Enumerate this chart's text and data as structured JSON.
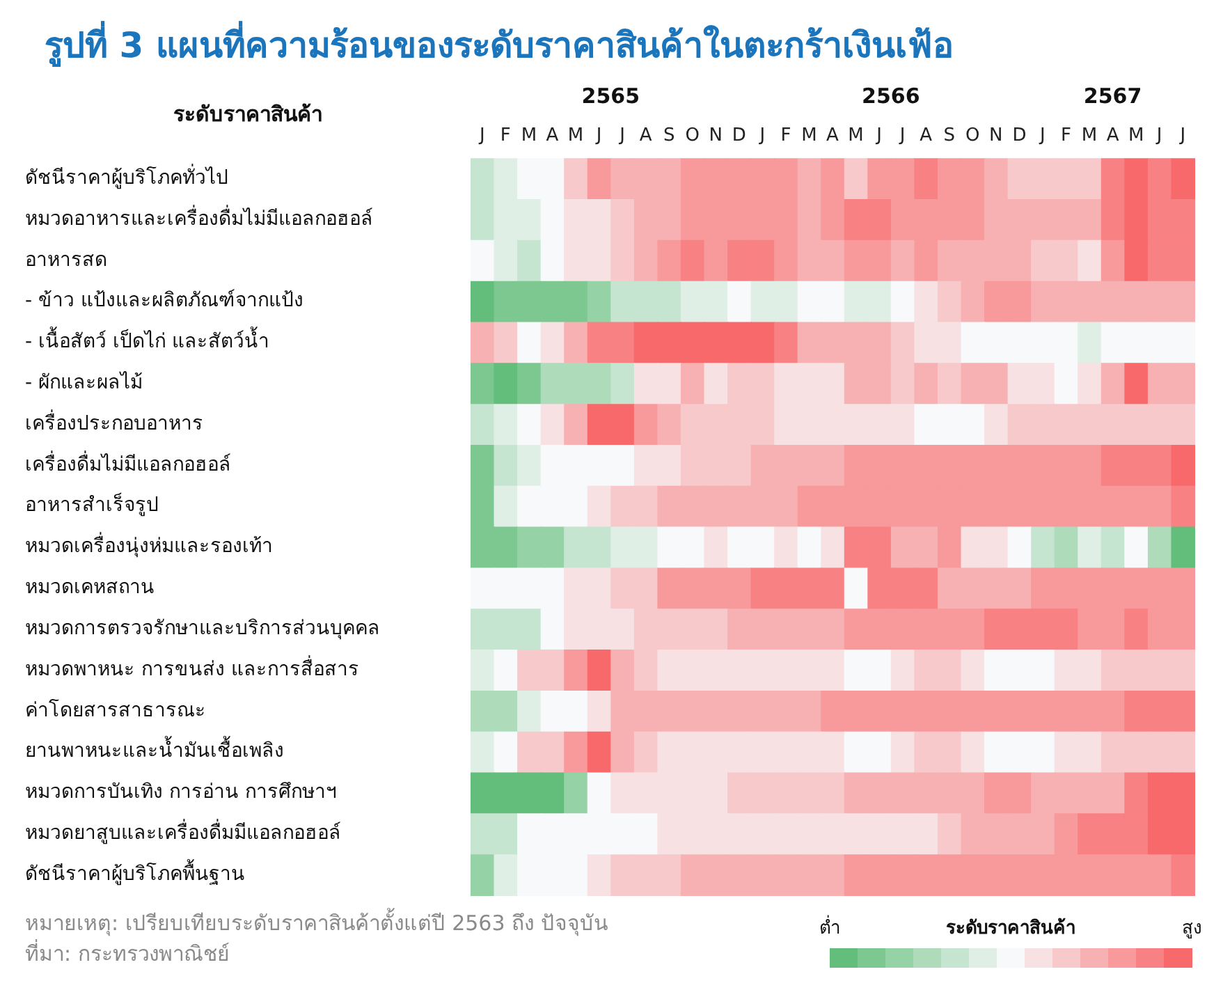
{
  "chart_data": {
    "type": "heatmap",
    "title": "รูปที่ 3 แผนที่ความร้อนของระดับราคาสินค้าในตะกร้าเงินเฟ้อ",
    "ylabel": "ระดับราคาสินค้า",
    "clabel": "ระดับราคาสินค้า",
    "annotations": [
      "2565",
      "2566",
      "2567",
      "หมายเหตุ: เปรียบเทียบระดับราคาสินค้าตั้งแต่ปี 2563 ถึง ปัจจุบัน",
      "ที่มา: กระทรวงพาณิชย์"
    ],
    "categories": [
      "J",
      "F",
      "M",
      "A",
      "M",
      "J",
      "J",
      "A",
      "S",
      "O",
      "N",
      "D",
      "J",
      "F",
      "M",
      "A",
      "M",
      "J",
      "J",
      "A",
      "S",
      "O",
      "N",
      "D",
      "J",
      "F",
      "M",
      "A",
      "M",
      "J",
      "J"
    ],
    "y_categories": [
      "ดัชนีราคาผู้บริโภคทั่วไป",
      "หมวดอาหารและเครื่องดื่มไม่มีแอลกอฮอล์",
      "อาหารสด",
      "- ข้าว แป้งและผลิตภัณฑ์จากแป้ง",
      "- เนื้อสัตว์ เป็ดไก่ และสัตว์น้ำ",
      "- ผักและผลไม้",
      "เครื่องประกอบอาหาร",
      "เครื่องดื่มไม่มีแอลกอฮอล์",
      "อาหารสำเร็จรูป",
      "หมวดเครื่องนุ่งห่มและรองเท้า",
      "หมวดเคหสถาน",
      "หมวดการตรวจรักษาและบริการส่วนบุคคล",
      "หมวดพาหนะ การขนส่ง และการสื่อสาร",
      "ค่าโดยสารสาธารณะ",
      "ยานพาหนะและน้ำมันเชื้อเพลิง",
      "หมวดการบันเทิง การอ่าน การศึกษาฯ",
      "หมวดยาสูบและเครื่องดื่มมีแอลกอฮอล์",
      "ดัชนีราคาผู้บริโภคพื้นฐาน"
    ],
    "cells": [
      [
        5,
        6,
        7,
        7,
        9,
        11,
        10,
        10,
        10,
        11,
        11,
        11,
        11,
        11,
        10,
        11,
        9,
        11,
        11,
        12,
        11,
        11,
        10,
        9,
        9,
        9,
        9,
        12,
        13,
        12,
        13
      ],
      [
        5,
        6,
        6,
        7,
        8,
        8,
        9,
        10,
        10,
        11,
        11,
        11,
        11,
        11,
        10,
        11,
        12,
        12,
        11,
        11,
        11,
        11,
        10,
        10,
        10,
        10,
        10,
        12,
        13,
        12,
        12
      ],
      [
        7,
        6,
        5,
        7,
        8,
        8,
        9,
        10,
        11,
        12,
        11,
        12,
        12,
        11,
        10,
        10,
        11,
        11,
        10,
        11,
        10,
        10,
        10,
        10,
        9,
        9,
        8,
        11,
        13,
        12,
        12
      ],
      [
        1,
        2,
        2,
        2,
        2,
        3,
        5,
        5,
        5,
        6,
        6,
        7,
        6,
        6,
        7,
        7,
        6,
        6,
        7,
        8,
        9,
        10,
        11,
        11,
        10,
        10,
        10,
        10,
        10,
        10,
        10
      ],
      [
        10,
        9,
        7,
        8,
        10,
        12,
        12,
        13,
        13,
        13,
        13,
        13,
        13,
        12,
        10,
        10,
        10,
        10,
        9,
        8,
        8,
        7,
        7,
        7,
        7,
        7,
        6,
        7,
        7,
        7,
        7
      ],
      [
        2,
        1,
        2,
        4,
        4,
        4,
        5,
        8,
        8,
        10,
        8,
        9,
        9,
        8,
        8,
        8,
        10,
        10,
        9,
        10,
        9,
        10,
        10,
        8,
        8,
        7,
        8,
        10,
        13,
        10,
        10
      ],
      [
        5,
        6,
        7,
        8,
        10,
        13,
        13,
        11,
        10,
        9,
        9,
        9,
        9,
        8,
        8,
        8,
        8,
        8,
        8,
        7,
        7,
        7,
        8,
        9,
        9,
        9,
        9,
        9,
        9,
        9,
        9
      ],
      [
        2,
        5,
        6,
        7,
        7,
        7,
        7,
        8,
        8,
        9,
        9,
        9,
        10,
        10,
        10,
        10,
        11,
        11,
        11,
        11,
        11,
        11,
        11,
        11,
        11,
        11,
        11,
        12,
        12,
        12,
        13
      ],
      [
        2,
        6,
        7,
        7,
        7,
        8,
        9,
        9,
        10,
        10,
        10,
        10,
        10,
        10,
        11,
        11,
        11,
        11,
        11,
        11,
        11,
        11,
        11,
        11,
        11,
        11,
        11,
        11,
        11,
        11,
        12
      ],
      [
        2,
        2,
        3,
        3,
        5,
        5,
        6,
        6,
        7,
        7,
        8,
        7,
        7,
        8,
        7,
        8,
        12,
        12,
        10,
        10,
        11,
        8,
        8,
        7,
        5,
        4,
        6,
        5,
        7,
        4,
        1
      ],
      [
        7,
        7,
        7,
        7,
        8,
        8,
        9,
        9,
        11,
        11,
        11,
        11,
        12,
        12,
        12,
        12,
        7,
        12,
        12,
        12,
        10,
        10,
        10,
        10,
        11,
        11,
        11,
        11,
        11,
        11,
        11
      ],
      [
        5,
        5,
        5,
        7,
        8,
        8,
        8,
        9,
        9,
        9,
        9,
        10,
        10,
        10,
        10,
        10,
        11,
        11,
        11,
        11,
        11,
        11,
        12,
        12,
        12,
        12,
        11,
        11,
        12,
        11,
        11
      ],
      [
        6,
        7,
        9,
        9,
        11,
        13,
        10,
        9,
        8,
        8,
        8,
        8,
        8,
        8,
        8,
        8,
        7,
        7,
        8,
        9,
        9,
        8,
        7,
        7,
        7,
        8,
        8,
        9,
        9,
        9,
        9
      ],
      [
        4,
        4,
        6,
        7,
        7,
        8,
        10,
        10,
        10,
        10,
        10,
        10,
        10,
        10,
        10,
        11,
        11,
        11,
        11,
        11,
        11,
        11,
        11,
        11,
        11,
        11,
        11,
        11,
        12,
        12,
        12
      ],
      [
        6,
        7,
        9,
        9,
        11,
        13,
        10,
        9,
        8,
        8,
        8,
        8,
        8,
        8,
        8,
        8,
        7,
        7,
        8,
        9,
        9,
        8,
        7,
        7,
        7,
        8,
        8,
        9,
        9,
        9,
        9
      ],
      [
        1,
        1,
        1,
        1,
        3,
        7,
        8,
        8,
        8,
        8,
        8,
        9,
        9,
        9,
        9,
        9,
        10,
        10,
        10,
        10,
        10,
        10,
        11,
        11,
        10,
        10,
        10,
        10,
        12,
        13,
        13
      ],
      [
        5,
        5,
        7,
        7,
        7,
        7,
        7,
        7,
        8,
        8,
        8,
        8,
        8,
        8,
        8,
        8,
        8,
        8,
        8,
        8,
        9,
        10,
        10,
        10,
        10,
        11,
        12,
        12,
        12,
        13,
        13
      ],
      [
        3,
        6,
        7,
        7,
        7,
        8,
        9,
        9,
        9,
        10,
        10,
        10,
        10,
        10,
        10,
        10,
        11,
        11,
        11,
        11,
        11,
        11,
        11,
        11,
        11,
        11,
        11,
        11,
        11,
        11,
        12
      ]
    ],
    "clim": [
      1,
      13
    ],
    "cticks": [
      {
        "value": 1,
        "label": "ต่ำ"
      },
      {
        "value": 13,
        "label": "สูง"
      }
    ]
  }
}
